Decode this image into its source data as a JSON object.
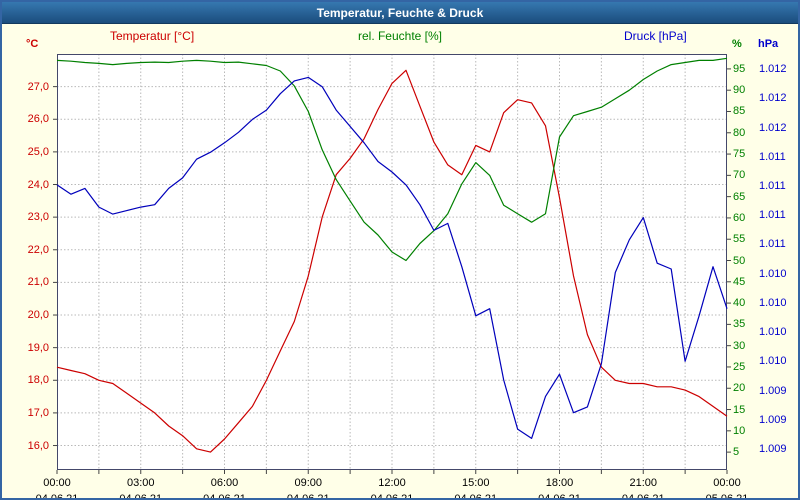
{
  "window": {
    "title": "Temperatur, Feuchte & Druck"
  },
  "chart_data": {
    "type": "line",
    "title": "Temperatur, Feuchte & Druck",
    "legend": {
      "temperature": "Temperatur [°C]",
      "humidity": "rel. Feuchte [%]",
      "pressure": "Druck [hPa]"
    },
    "grid": true,
    "plot_background": "#ffffff",
    "page_background": "#ffffe8",
    "x_axis": {
      "range_hours": [
        0,
        24
      ],
      "minor_grid_hours": 1.5,
      "tick_hours": [
        0,
        3,
        6,
        9,
        12,
        15,
        18,
        21,
        24
      ],
      "tick_labels": [
        "00:00",
        "03:00",
        "06:00",
        "09:00",
        "12:00",
        "15:00",
        "18:00",
        "21:00",
        "00:00"
      ],
      "date_labels": [
        "04.06.21",
        "04.06.21",
        "04.06.21",
        "04.06.21",
        "04.06.21",
        "04.06.21",
        "04.06.21",
        "04.06.21",
        "05.06.21"
      ]
    },
    "axes": {
      "temperature": {
        "unit": "°C",
        "color": "#cc0000",
        "min": 15.25,
        "max": 28.0,
        "tick_values": [
          27,
          26,
          25,
          24,
          23,
          22,
          21,
          20,
          19,
          18,
          17,
          16
        ],
        "tick_labels": [
          "27,0",
          "26,0",
          "25,0",
          "24,0",
          "23,0",
          "22,0",
          "21,0",
          "20,0",
          "19,0",
          "18,0",
          "17,0",
          "16,0"
        ]
      },
      "humidity": {
        "unit": "%",
        "color": "#008000",
        "min": 0.8,
        "max": 98.5,
        "tick_values": [
          95,
          90,
          85,
          80,
          75,
          70,
          65,
          60,
          55,
          50,
          45,
          40,
          35,
          30,
          25,
          20,
          15,
          10,
          5
        ],
        "tick_labels": [
          "95",
          "90",
          "85",
          "80",
          "75",
          "70",
          "65",
          "60",
          "55",
          "50",
          "45",
          "40",
          "35",
          "30",
          "25",
          "20",
          "15",
          "10",
          "5"
        ]
      },
      "pressure": {
        "unit": "hPa",
        "color": "#0000cc",
        "min": 1008.67,
        "max": 1012.23,
        "tick_values": [
          1012.1,
          1011.85,
          1011.6,
          1011.35,
          1011.1,
          1010.85,
          1010.6,
          1010.35,
          1010.1,
          1009.85,
          1009.6,
          1009.35,
          1009.1,
          1008.85
        ],
        "tick_labels": [
          "1.012",
          "1.012",
          "1.012",
          "1.011",
          "1.011",
          "1.011",
          "1.011",
          "1.010",
          "1.010",
          "1.010",
          "1.010",
          "1.009",
          "1.009",
          "1.009"
        ]
      }
    },
    "x_hours": [
      0,
      0.5,
      1,
      1.5,
      2,
      2.5,
      3,
      3.5,
      4,
      4.5,
      5,
      5.5,
      6,
      6.5,
      7,
      7.5,
      8,
      8.5,
      9,
      9.5,
      10,
      10.5,
      11,
      11.5,
      12,
      12.5,
      13,
      13.5,
      14,
      14.5,
      15,
      15.5,
      16,
      16.5,
      17,
      17.5,
      18,
      18.5,
      19,
      19.5,
      20,
      20.5,
      21,
      21.5,
      22,
      22.5,
      23,
      23.5,
      24
    ],
    "series": [
      {
        "id": "temperature",
        "name": "Temperatur",
        "axis": "temperature",
        "color": "#cc0000",
        "values": [
          18.4,
          18.3,
          18.2,
          18.0,
          17.9,
          17.6,
          17.3,
          17.0,
          16.6,
          16.3,
          15.9,
          15.8,
          16.2,
          16.7,
          17.2,
          18.0,
          18.9,
          19.8,
          21.2,
          23.0,
          24.3,
          24.8,
          25.4,
          26.3,
          27.1,
          27.5,
          26.4,
          25.3,
          24.6,
          24.3,
          25.2,
          25.0,
          26.2,
          26.6,
          26.5,
          25.8,
          23.6,
          21.2,
          19.4,
          18.4,
          18.0,
          17.9,
          17.9,
          17.8,
          17.8,
          17.7,
          17.5,
          17.2,
          16.9
        ]
      },
      {
        "id": "humidity",
        "name": "rel. Feuchte",
        "axis": "humidity",
        "color": "#008000",
        "values": [
          97,
          96.8,
          96.5,
          96.3,
          96,
          96.3,
          96.5,
          96.6,
          96.5,
          96.8,
          97,
          96.8,
          96.5,
          96.6,
          96.2,
          95.8,
          94.5,
          91,
          85,
          76,
          69,
          64,
          59,
          56,
          52,
          50,
          54,
          57,
          61,
          68,
          73,
          70,
          63,
          61,
          59,
          61,
          79,
          84,
          85,
          86,
          88,
          90,
          92.5,
          94.5,
          96,
          96.5,
          97,
          97,
          97.5
        ]
      },
      {
        "id": "pressure",
        "name": "Druck",
        "axis": "pressure",
        "color": "#0000bb",
        "values": [
          1011.11,
          1011.03,
          1011.08,
          1010.92,
          1010.86,
          1010.89,
          1010.92,
          1010.94,
          1011.08,
          1011.17,
          1011.33,
          1011.39,
          1011.47,
          1011.56,
          1011.67,
          1011.75,
          1011.89,
          1012.0,
          1012.03,
          1011.95,
          1011.75,
          1011.61,
          1011.47,
          1011.31,
          1011.22,
          1011.11,
          1010.94,
          1010.72,
          1010.78,
          1010.41,
          1009.99,
          1010.05,
          1009.44,
          1009.02,
          1008.94,
          1009.3,
          1009.49,
          1009.16,
          1009.21,
          1009.58,
          1010.36,
          1010.64,
          1010.83,
          1010.44,
          1010.39,
          1009.6,
          1009.99,
          1010.41,
          1010.05
        ]
      }
    ]
  }
}
